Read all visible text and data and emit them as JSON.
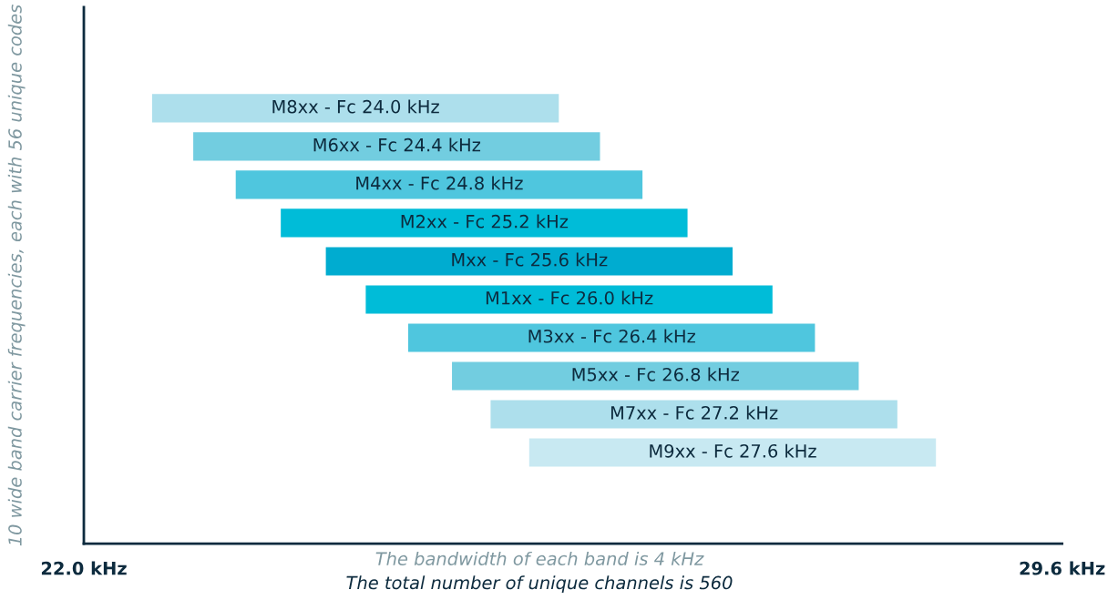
{
  "chart_data": {
    "type": "bar",
    "orientation": "horizontal",
    "categories": [
      "M8xx - Fc 24.0 kHz",
      "M6xx - Fc 24.4 kHz",
      "M4xx - Fc 24.8 kHz",
      "M2xx - Fc 25.2 kHz",
      "Mxx - Fc 25.6 kHz",
      "M1xx - Fc 26.0 kHz",
      "M3xx - Fc 26.4 kHz",
      "M5xx - Fc 26.8 kHz",
      "M7xx - Fc 27.2 kHz",
      "M9xx - Fc 27.6 kHz"
    ],
    "base": [
      22.53,
      22.85,
      23.18,
      23.53,
      23.88,
      24.19,
      24.52,
      24.86,
      25.16,
      25.46
    ],
    "values": [
      3.16,
      3.16,
      3.16,
      3.16,
      3.16,
      3.16,
      3.16,
      3.16,
      3.16,
      3.16
    ],
    "colors": [
      "#addfec",
      "#72cde0",
      "#4fc6de",
      "#00bcd8",
      "#00acd0",
      "#00bcd8",
      "#4fc6de",
      "#72cde0",
      "#addfec",
      "#c8e9f2"
    ],
    "xlim": [
      22.0,
      29.6
    ],
    "xticks": [
      {
        "value": 22.0,
        "label": "22.0 kHz"
      },
      {
        "value": 29.6,
        "label": "29.6 kHz"
      }
    ],
    "ylabel": "10 wide band carrier frequencies, each with 56 unique codes",
    "annotations": [
      "The bandwidth of each band is 4 kHz",
      "The total number of unique channels is 560"
    ],
    "tick_labels": "x",
    "grid": false,
    "legend": false
  }
}
